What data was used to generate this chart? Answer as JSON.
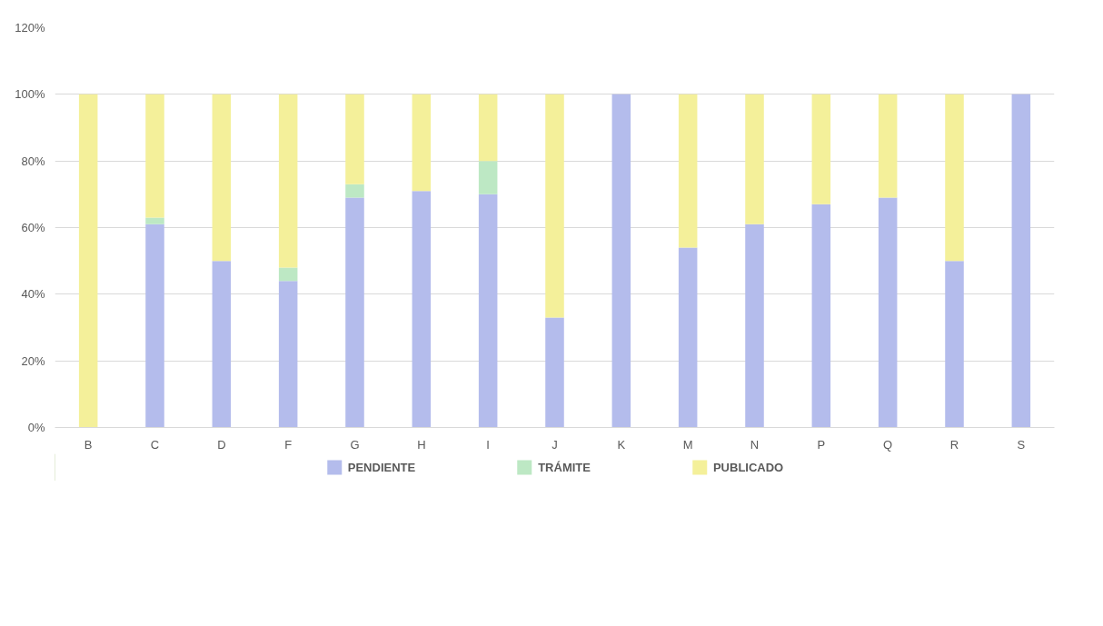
{
  "chart_data": {
    "type": "bar",
    "stacked": true,
    "categories": [
      "B",
      "C",
      "D",
      "F",
      "G",
      "H",
      "I",
      "J",
      "K",
      "M",
      "N",
      "P",
      "Q",
      "R",
      "S"
    ],
    "series": [
      {
        "name": "PENDIENTE",
        "color": "#b4bcec",
        "values": [
          0,
          61,
          50,
          44,
          69,
          71,
          70,
          33,
          100,
          54,
          61,
          67,
          69,
          50,
          100
        ]
      },
      {
        "name": "TRÁMITE",
        "color": "#bde8c4",
        "values": [
          0,
          2,
          0,
          4,
          4,
          0,
          10,
          0,
          0,
          0,
          0,
          0,
          0,
          0,
          0
        ]
      },
      {
        "name": "PUBLICADO",
        "color": "#f4f09a",
        "values": [
          100,
          37,
          50,
          52,
          27,
          29,
          20,
          67,
          0,
          46,
          39,
          33,
          31,
          50,
          0
        ]
      }
    ],
    "ylim": [
      0,
      120
    ],
    "yticks": [
      {
        "value": 0,
        "label": "0%"
      },
      {
        "value": 20,
        "label": "20%"
      },
      {
        "value": 40,
        "label": "40%"
      },
      {
        "value": 60,
        "label": "60%"
      },
      {
        "value": 80,
        "label": "80%"
      },
      {
        "value": 100,
        "label": "100%"
      },
      {
        "value": 120,
        "label": "120%"
      }
    ],
    "grid": "y",
    "legend": "bottom"
  }
}
